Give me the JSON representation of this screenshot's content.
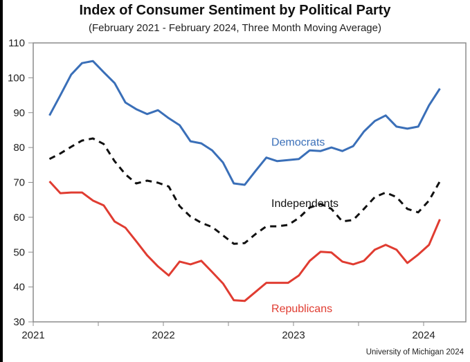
{
  "chart_data": {
    "type": "line",
    "title": "Index of Consumer Sentiment by Political Party",
    "subtitle": "(February 2021 - February 2024, Three Month Moving Average)",
    "source": "University of Michigan 2024",
    "xlabel": "",
    "ylabel": "",
    "ylim": [
      30,
      110
    ],
    "yticks": [
      30,
      40,
      50,
      60,
      70,
      80,
      90,
      100,
      110
    ],
    "xticks": [
      {
        "label": "2021",
        "year": 2021.0
      },
      {
        "label": "",
        "year": 2021.5
      },
      {
        "label": "2022",
        "year": 2022.0
      },
      {
        "label": "",
        "year": 2022.5
      },
      {
        "label": "2023",
        "year": 2023.0
      },
      {
        "label": "",
        "year": 2023.5
      },
      {
        "label": "2024",
        "year": 2024.0
      }
    ],
    "xlim_years": [
      2021.0,
      2024.33
    ],
    "x_start": "February 2021",
    "x_step": "monthly",
    "grid": false,
    "legend": "inline labels",
    "series": [
      {
        "name": "Democrats",
        "color": "#3a6fb8",
        "dash": "solid",
        "label_at": {
          "year": 2022.83,
          "value": 80.5
        },
        "values": [
          89.2,
          95.0,
          100.9,
          104.2,
          104.8,
          101.6,
          98.5,
          92.9,
          91.0,
          89.6,
          90.7,
          88.4,
          86.4,
          81.8,
          81.2,
          79.2,
          75.7,
          69.7,
          69.3,
          73.3,
          77.1,
          76.1,
          76.4,
          76.7,
          79.2,
          79.0,
          80.0,
          79.0,
          80.4,
          84.6,
          87.6,
          89.2,
          86.0,
          85.4,
          86.0,
          92.1,
          96.9
        ]
      },
      {
        "name": "Independents",
        "color": "#111111",
        "dash": "dashed",
        "label_at": {
          "year": 2022.83,
          "value": 63.0
        },
        "values": [
          76.7,
          78.3,
          80.2,
          82.0,
          82.6,
          81.0,
          76.1,
          72.3,
          69.7,
          70.5,
          69.9,
          68.8,
          63.2,
          60.2,
          58.4,
          57.2,
          54.8,
          52.4,
          52.6,
          55.2,
          57.4,
          57.4,
          57.8,
          59.8,
          62.8,
          63.8,
          62.4,
          58.8,
          59.2,
          62.4,
          65.8,
          67.1,
          65.8,
          62.4,
          61.4,
          64.8,
          70.3
        ]
      },
      {
        "name": "Republicans",
        "color": "#e03c31",
        "dash": "solid",
        "label_at": {
          "year": 2022.83,
          "value": 32.8
        },
        "values": [
          70.3,
          66.9,
          67.1,
          67.1,
          64.8,
          63.4,
          58.8,
          57.0,
          53.1,
          49.1,
          45.9,
          43.3,
          47.3,
          46.5,
          47.5,
          44.3,
          41.0,
          36.2,
          36.0,
          38.6,
          41.2,
          41.2,
          41.2,
          43.3,
          47.5,
          50.1,
          49.9,
          47.3,
          46.5,
          47.5,
          50.7,
          52.1,
          50.7,
          46.9,
          49.3,
          52.1,
          59.4
        ]
      }
    ]
  }
}
